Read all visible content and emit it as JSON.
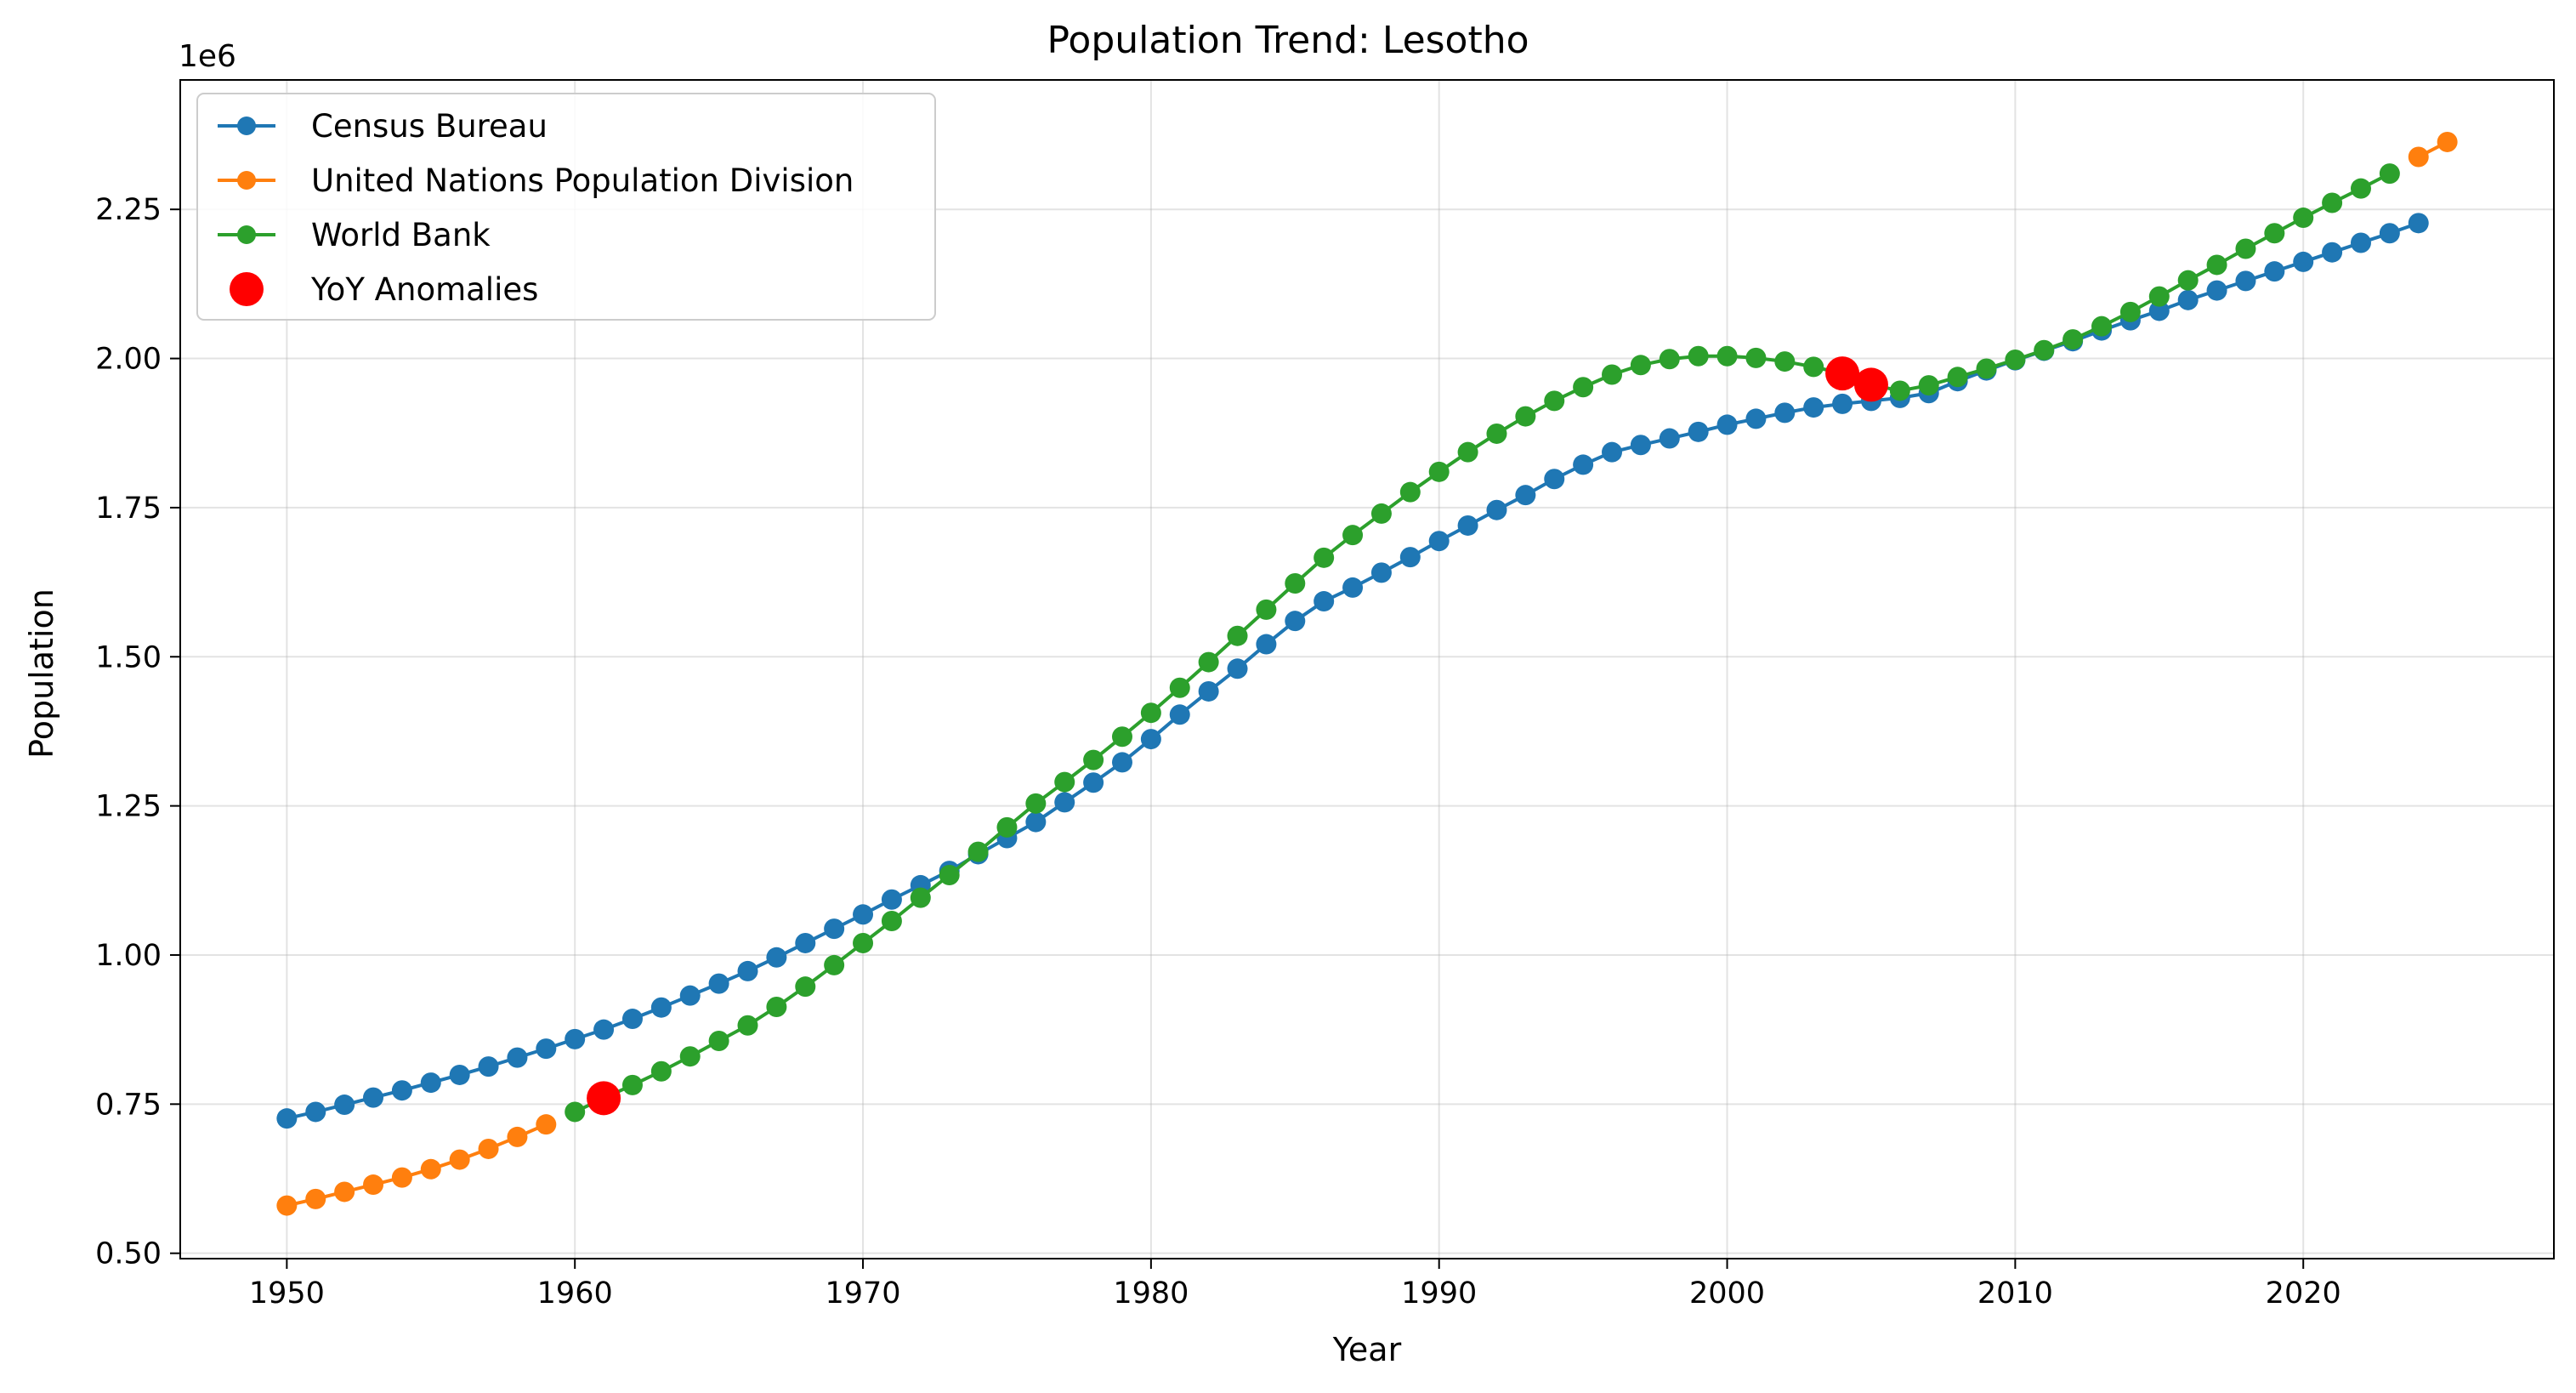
{
  "chart_data": {
    "type": "line",
    "title": "Population Trend: Lesotho",
    "xlabel": "Year",
    "ylabel": "Population",
    "y_offset_label": "1e6",
    "y_scale": 1000000,
    "xlim": [
      1946.3,
      2028.7
    ],
    "ylim": [
      0.491,
      2.467
    ],
    "x_ticks": [
      1950,
      1960,
      1970,
      1980,
      1990,
      2000,
      2010,
      2020
    ],
    "x_tick_labels": [
      "1950",
      "1960",
      "1970",
      "1980",
      "1990",
      "2000",
      "2010",
      "2020"
    ],
    "y_ticks": [
      0.5,
      0.75,
      1.0,
      1.25,
      1.5,
      1.75,
      2.0,
      2.25
    ],
    "y_tick_labels": [
      "0.50",
      "0.75",
      "1.00",
      "1.25",
      "1.50",
      "1.75",
      "2.00",
      "2.25"
    ],
    "grid": true,
    "legend_position": "top-left",
    "series": [
      {
        "name": "Census Bureau",
        "color": "#1f77b4",
        "x": [
          1950,
          1951,
          1952,
          1953,
          1954,
          1955,
          1956,
          1957,
          1958,
          1959,
          1960,
          1961,
          1962,
          1963,
          1964,
          1965,
          1966,
          1967,
          1968,
          1969,
          1970,
          1971,
          1972,
          1973,
          1974,
          1975,
          1976,
          1977,
          1978,
          1979,
          1980,
          1981,
          1982,
          1983,
          1984,
          1985,
          1986,
          1987,
          1988,
          1989,
          1990,
          1991,
          1992,
          1993,
          1994,
          1995,
          1996,
          1997,
          1998,
          1999,
          2000,
          2001,
          2002,
          2003,
          2004,
          2005,
          2006,
          2007,
          2008,
          2009,
          2010,
          2011,
          2012,
          2013,
          2014,
          2015,
          2016,
          2017,
          2018,
          2019,
          2020,
          2021,
          2022,
          2023,
          2024
        ],
        "y": [
          0.726,
          0.737,
          0.749,
          0.761,
          0.773,
          0.786,
          0.799,
          0.813,
          0.828,
          0.843,
          0.859,
          0.875,
          0.893,
          0.912,
          0.932,
          0.952,
          0.973,
          0.996,
          1.02,
          1.044,
          1.068,
          1.093,
          1.117,
          1.141,
          1.169,
          1.196,
          1.223,
          1.256,
          1.289,
          1.323,
          1.362,
          1.403,
          1.442,
          1.48,
          1.521,
          1.56,
          1.593,
          1.616,
          1.641,
          1.667,
          1.694,
          1.72,
          1.746,
          1.771,
          1.798,
          1.822,
          1.843,
          1.855,
          1.866,
          1.877,
          1.889,
          1.899,
          1.909,
          1.918,
          1.924,
          1.929,
          1.934,
          1.942,
          1.962,
          1.98,
          1.997,
          2.013,
          2.029,
          2.047,
          2.064,
          2.08,
          2.098,
          2.114,
          2.13,
          2.146,
          2.162,
          2.178,
          2.194,
          2.21,
          2.227
        ]
      },
      {
        "name": "United Nations Population Division",
        "color": "#ff7f0e",
        "x": [
          1950,
          1951,
          1952,
          1953,
          1954,
          1955,
          1956,
          1957,
          1958,
          1959,
          2024,
          2025
        ],
        "y": [
          0.58,
          0.591,
          0.603,
          0.615,
          0.627,
          0.641,
          0.657,
          0.675,
          0.695,
          0.716,
          2.338,
          2.363
        ]
      },
      {
        "name": "World Bank",
        "color": "#2ca02c",
        "x": [
          1960,
          1961,
          1962,
          1963,
          1964,
          1965,
          1966,
          1967,
          1968,
          1969,
          1970,
          1971,
          1972,
          1973,
          1974,
          1975,
          1976,
          1977,
          1978,
          1979,
          1980,
          1981,
          1982,
          1983,
          1984,
          1985,
          1986,
          1987,
          1988,
          1989,
          1990,
          1991,
          1992,
          1993,
          1994,
          1995,
          1996,
          1997,
          1998,
          1999,
          2000,
          2001,
          2002,
          2003,
          2004,
          2005,
          2006,
          2007,
          2008,
          2009,
          2010,
          2011,
          2012,
          2013,
          2014,
          2015,
          2016,
          2017,
          2018,
          2019,
          2020,
          2021,
          2022,
          2023
        ],
        "y": [
          0.737,
          0.76,
          0.782,
          0.805,
          0.83,
          0.856,
          0.882,
          0.913,
          0.947,
          0.983,
          1.02,
          1.057,
          1.096,
          1.134,
          1.173,
          1.214,
          1.254,
          1.29,
          1.327,
          1.366,
          1.406,
          1.448,
          1.491,
          1.535,
          1.579,
          1.623,
          1.666,
          1.704,
          1.74,
          1.776,
          1.81,
          1.843,
          1.874,
          1.903,
          1.929,
          1.952,
          1.973,
          1.989,
          1.999,
          2.004,
          2.004,
          2.001,
          1.995,
          1.986,
          1.975,
          1.956,
          1.946,
          1.955,
          1.969,
          1.983,
          1.998,
          2.014,
          2.032,
          2.054,
          2.078,
          2.104,
          2.131,
          2.157,
          2.184,
          2.21,
          2.236,
          2.261,
          2.285,
          2.31
        ]
      }
    ],
    "anomalies": {
      "name": "YoY Anomalies",
      "color": "#ff0000",
      "x": [
        1961,
        2004,
        2005
      ],
      "y": [
        0.76,
        1.975,
        1.956
      ]
    }
  }
}
